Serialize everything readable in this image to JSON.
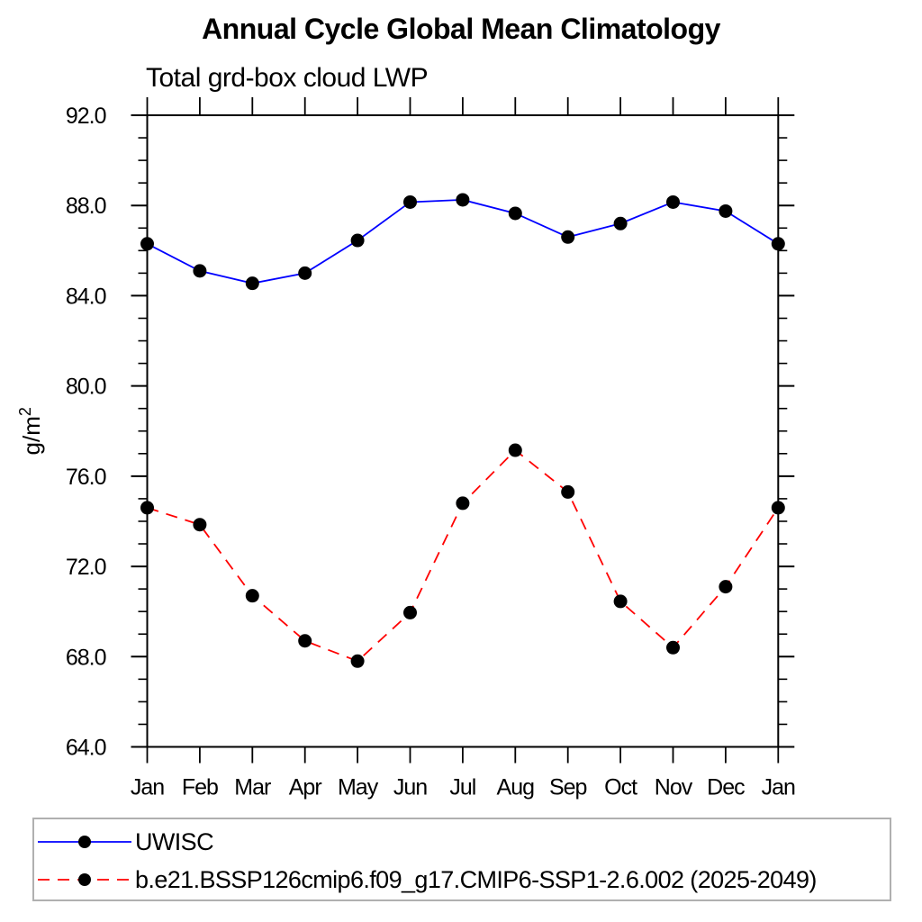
{
  "chart_data": {
    "type": "line",
    "title": "Annual Cycle Global Mean Climatology",
    "subtitle": "Total grd-box cloud LWP",
    "ylabel": "g/m²",
    "ylabel_base": "g/m",
    "ylabel_sup": "2",
    "xlabel": "",
    "categories": [
      "Jan",
      "Feb",
      "Mar",
      "Apr",
      "May",
      "Jun",
      "Jul",
      "Aug",
      "Sep",
      "Oct",
      "Nov",
      "Dec",
      "Jan"
    ],
    "ylim": [
      64.0,
      92.0
    ],
    "ytick_major": 4.0,
    "ytick_minor": 1.0,
    "ytick_labels": [
      "64.0",
      "68.0",
      "72.0",
      "76.0",
      "80.0",
      "84.0",
      "88.0",
      "92.0"
    ],
    "grid": "off",
    "legend_position": "bottom",
    "marker": {
      "shape": "circle",
      "color": "#000000",
      "radius": 7.5
    },
    "axis_color": "#000000",
    "legend_border_color": "#b0b0b0",
    "series": [
      {
        "name": "UWISC",
        "color": "#0000ff",
        "line_style": "solid",
        "values": [
          86.3,
          85.1,
          84.55,
          85.0,
          86.45,
          88.15,
          88.25,
          87.65,
          86.6,
          87.2,
          88.15,
          87.75,
          86.3
        ]
      },
      {
        "name": "b.e21.BSSP126cmip6.f09_g17.CMIP6-SSP1-2.6.002 (2025-2049)",
        "color": "#ff0000",
        "line_style": "dashed",
        "values": [
          74.6,
          73.85,
          70.7,
          68.7,
          67.8,
          69.95,
          74.8,
          77.15,
          75.3,
          70.45,
          68.4,
          71.1,
          74.6
        ]
      }
    ]
  }
}
